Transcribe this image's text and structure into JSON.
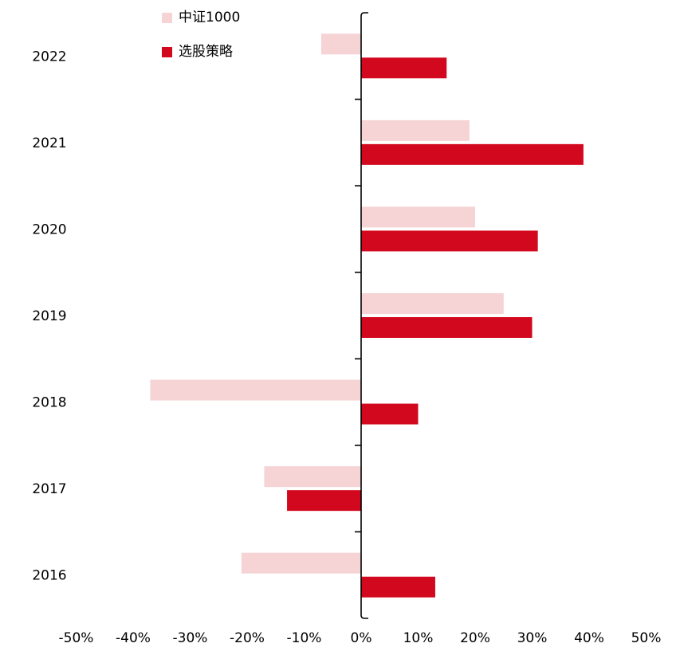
{
  "chart_data": {
    "type": "bar",
    "orientation": "horizontal",
    "title": "",
    "categories": [
      "2022",
      "2021",
      "2020",
      "2019",
      "2018",
      "2017",
      "2016"
    ],
    "series": [
      {
        "name": "中证1000",
        "color": "#f6d3d4",
        "values": [
          -7,
          19,
          20,
          25,
          -37,
          -17,
          -21
        ]
      },
      {
        "name": "选股策略",
        "color": "#d2081e",
        "values": [
          15,
          39,
          31,
          30,
          10,
          -13,
          13
        ]
      }
    ],
    "value_unit": "%",
    "xlim": [
      -50,
      50
    ],
    "x_ticks": [
      -50,
      -40,
      -30,
      -20,
      -10,
      0,
      10,
      20,
      30,
      40,
      50
    ],
    "x_tick_labels": [
      "-50%",
      "-40%",
      "-30%",
      "-20%",
      "-10%",
      "0%",
      "10%",
      "20%",
      "30%",
      "40%",
      "50%"
    ],
    "grid": false,
    "legend_position": "top-left-inside",
    "axis_color": "#000000",
    "text_color": "#000000"
  }
}
